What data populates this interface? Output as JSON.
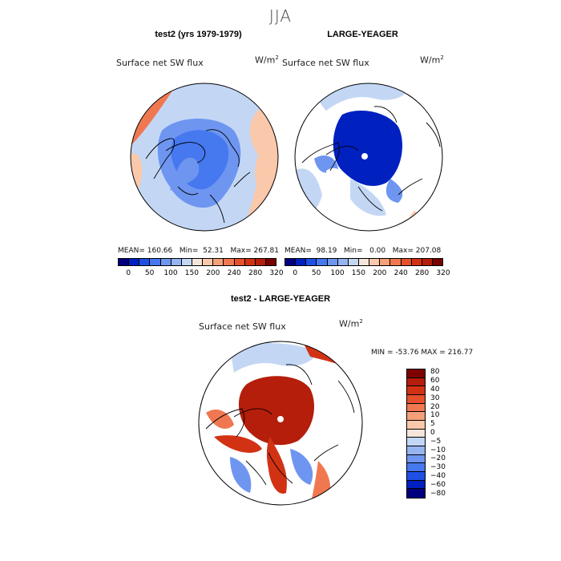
{
  "season": "JJA",
  "panels": [
    {
      "title": "test2 (yrs 1979-1979)",
      "variable": "Surface net SW flux",
      "units": "W/m",
      "units_sup": "2",
      "stats": {
        "mean_label": "MEAN=",
        "mean": "160.66",
        "min_label": "Min=",
        "min": "52.31",
        "max_label": "Max=",
        "max": "267.81"
      }
    },
    {
      "title": "LARGE-YEAGER",
      "variable": "Surface net SW flux",
      "units": "W/m",
      "units_sup": "2",
      "stats": {
        "mean_label": "MEAN=",
        "mean": "98.19",
        "min_label": "Min=",
        "min": "0.00",
        "max_label": "Max=",
        "max": "207.08"
      }
    },
    {
      "title": "test2 - LARGE-YEAGER",
      "variable": "Surface net SW flux",
      "units": "W/m",
      "units_sup": "2",
      "stats": {
        "min_label": "MIN =",
        "min": "-53.76",
        "max_label": "MAX =",
        "max": "216.77"
      }
    }
  ],
  "colorbar_abs": {
    "colors": [
      "#00007f",
      "#0020c0",
      "#1e50e6",
      "#4678f0",
      "#6e96f0",
      "#96b4f0",
      "#c3d7f5",
      "#f5e6dc",
      "#fac8aa",
      "#f5a078",
      "#f07850",
      "#e6502d",
      "#d23214",
      "#b41e0a",
      "#780000"
    ],
    "labels": [
      "0",
      "50",
      "100",
      "150",
      "200",
      "240",
      "280",
      "320"
    ]
  },
  "colorbar_diff": {
    "colors": [
      "#7f0000",
      "#b41e0a",
      "#d23214",
      "#e6502d",
      "#f07850",
      "#f5a078",
      "#fac8aa",
      "#f5e6dc",
      "#c3d7f5",
      "#96b4f0",
      "#6e96f0",
      "#4678f0",
      "#1e50e6",
      "#0020c0",
      "#00007f"
    ],
    "labels": [
      "80",
      "60",
      "40",
      "30",
      "20",
      "10",
      "5",
      "0",
      "−5",
      "−10",
      "−20",
      "−30",
      "−40",
      "−60",
      "−80"
    ]
  },
  "map_colors": {
    "ocean_light": "#c3d7f5",
    "blue_mid": "#4678f0",
    "blue_light": "#6e96f0",
    "blue_deep": "#0020c0",
    "salmon": "#fac8aa",
    "orange": "#f07850",
    "red": "#d23214",
    "darkred": "#b41e0a",
    "white": "#ffffff"
  }
}
